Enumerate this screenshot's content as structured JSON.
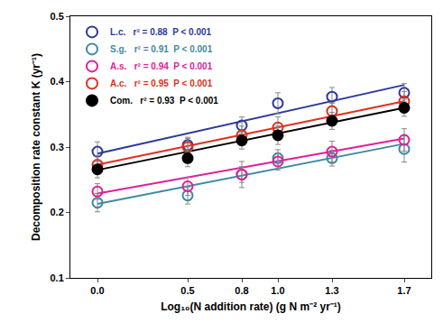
{
  "chart_data": {
    "type": "scatter",
    "x_label": "Log₁₀(N addition rate) (g N m⁻² yr⁻¹)",
    "y_label": "Decomposition rate constant K (yr⁻¹)",
    "x": [
      0,
      0.5,
      0.8,
      1.0,
      1.3,
      1.7
    ],
    "xlim": [
      -0.15,
      1.85
    ],
    "xticks": [
      {
        "value": 0,
        "label": "0.0"
      },
      0.5,
      0.8,
      {
        "value": 1,
        "label": "1.0"
      },
      1.3,
      1.7
    ],
    "ylim": [
      0.1,
      0.5
    ],
    "yticks": [
      0.1,
      0.2,
      0.3,
      0.4,
      0.5
    ],
    "grid": false,
    "legend": "upper left",
    "series": [
      {
        "name": "L.c.",
        "stats": "r² = 0.88  P < 0.001",
        "color": "#2b3a9a",
        "marker": "circle-open",
        "values": [
          0.293,
          0.303,
          0.333,
          0.367,
          0.377,
          0.383
        ],
        "errors": [
          0.015,
          0.012,
          0.013,
          0.016,
          0.014,
          0.014
        ],
        "fit": [
          0.29,
          0.395
        ]
      },
      {
        "name": "S.g.",
        "stats": "r² = 0.91  P < 0.001",
        "color": "#3f8aa3",
        "marker": "circle-open",
        "values": [
          0.215,
          0.226,
          0.258,
          0.283,
          0.283,
          0.297
        ],
        "errors": [
          0.014,
          0.013,
          0.012,
          0.013,
          0.012,
          0.02
        ],
        "fit": [
          0.213,
          0.305
        ]
      },
      {
        "name": "A.s.",
        "stats": "r² = 0.94  P < 0.001",
        "color": "#e0209a",
        "marker": "circle-open",
        "values": [
          0.232,
          0.24,
          0.258,
          0.278,
          0.293,
          0.311
        ],
        "errors": [
          0.012,
          0.014,
          0.02,
          0.013,
          0.016,
          0.017
        ],
        "fit": [
          0.229,
          0.313
        ]
      },
      {
        "name": "A.c.",
        "stats": "r² = 0.95  P < 0.001",
        "color": "#e03020",
        "marker": "circle-open",
        "values": [
          0.273,
          0.3,
          0.318,
          0.33,
          0.355,
          0.37
        ],
        "errors": [
          0.014,
          0.013,
          0.014,
          0.016,
          0.012,
          0.015
        ],
        "fit": [
          0.273,
          0.37
        ]
      },
      {
        "name": "Com.",
        "stats": "r² = 0.93  P < 0.001",
        "color": "#000000",
        "marker": "circle",
        "values": [
          0.266,
          0.283,
          0.31,
          0.318,
          0.34,
          0.36
        ],
        "errors": [
          0.013,
          0.013,
          0.013,
          0.014,
          0.013,
          0.013
        ],
        "fit": [
          0.265,
          0.36
        ]
      }
    ]
  }
}
